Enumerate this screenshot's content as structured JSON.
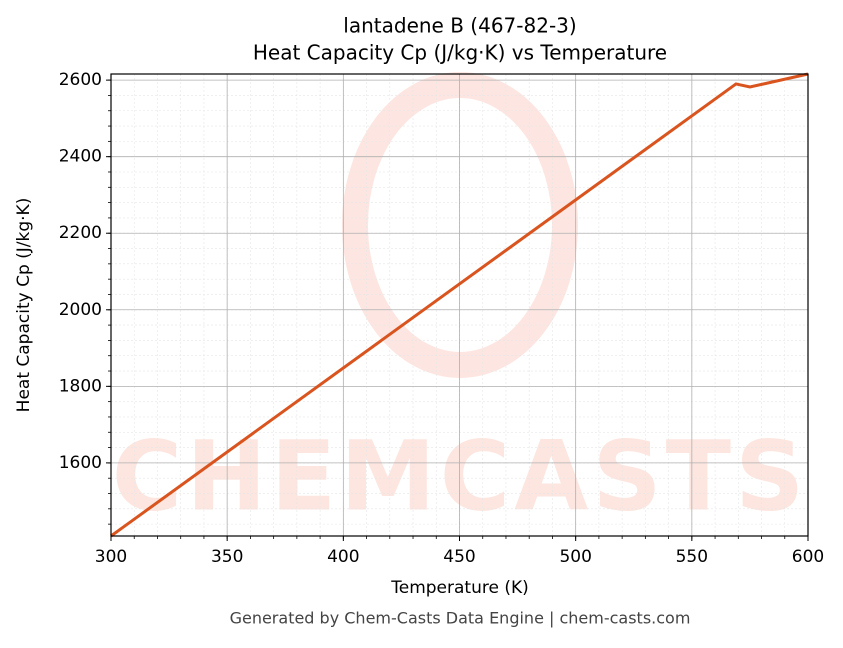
{
  "chart_data": {
    "type": "line",
    "title": [
      "lantadene B (467-82-3)",
      "Heat Capacity Cp (J/kg·K) vs Temperature"
    ],
    "xlabel": "Temperature (K)",
    "ylabel": "Heat Capacity Cp (J/kg·K)",
    "x": [
      300,
      569,
      575,
      600
    ],
    "series": [
      {
        "name": "Heat Capacity Cp",
        "color": "#d9541e",
        "values": [
          1409,
          2590,
          2582,
          2616
        ]
      }
    ],
    "xlim": [
      300,
      600
    ],
    "ylim": [
      1409,
      2616
    ],
    "xticks": [
      300,
      350,
      400,
      450,
      500,
      550,
      600
    ],
    "yticks": [
      1600,
      1800,
      2000,
      2200,
      2400,
      2600
    ],
    "grid": true,
    "minor_grid": true,
    "watermark": "CHEMCASTS",
    "footer": "Generated by Chem-Casts Data Engine | chem-casts.com"
  }
}
